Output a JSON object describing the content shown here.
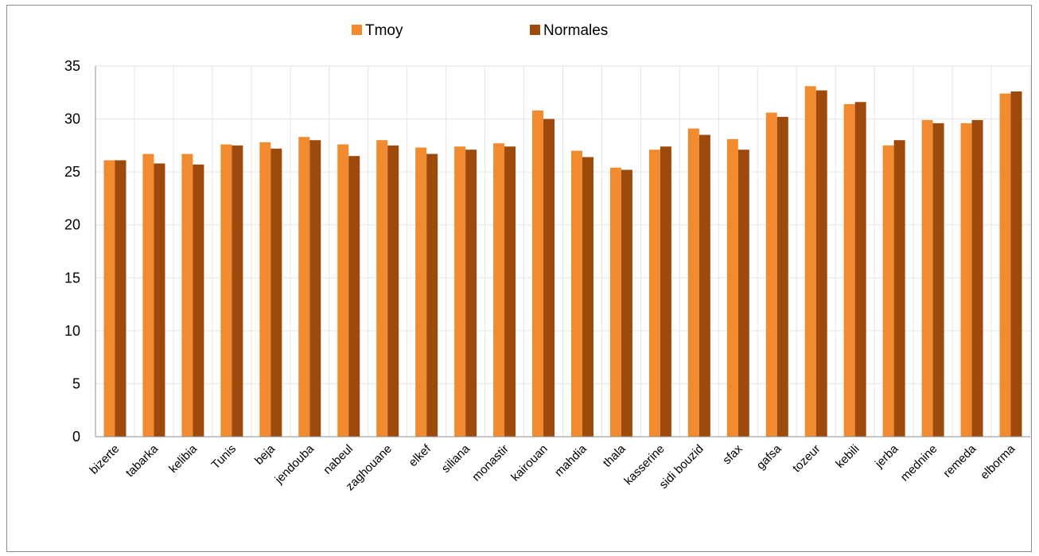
{
  "chart_data": {
    "type": "bar",
    "title": "",
    "xlabel": "",
    "ylabel": "",
    "ylim": [
      0,
      35
    ],
    "yticks": [
      0,
      5,
      10,
      15,
      20,
      25,
      30,
      35
    ],
    "grid": true,
    "legend_position": "top",
    "categories": [
      "bizerte",
      "tabarka",
      "kelibia",
      "Tunis",
      "beja",
      "jendouba",
      "nabeul",
      "zaghouane",
      "elkef",
      "siliana",
      "monastir",
      "kairouan",
      "mahdia",
      "thala",
      "kasserine",
      "sidi bouzid",
      "sfax",
      "gafsa",
      "tozeur",
      "kebili",
      "jerba",
      "mednine",
      "remeda",
      "elborma"
    ],
    "series": [
      {
        "name": "Tmoy",
        "color": "#f28b30",
        "values": [
          26.1,
          26.7,
          26.7,
          27.6,
          27.8,
          28.3,
          27.6,
          28.0,
          27.3,
          27.4,
          27.7,
          30.8,
          27.0,
          25.4,
          27.1,
          29.1,
          28.1,
          30.6,
          33.1,
          31.4,
          27.5,
          29.9,
          29.6,
          32.4
        ]
      },
      {
        "name": "Normales",
        "color": "#9e4a0c",
        "values": [
          26.1,
          25.8,
          25.7,
          27.5,
          27.2,
          28.0,
          26.5,
          27.5,
          26.7,
          27.1,
          27.4,
          30.0,
          26.4,
          25.2,
          27.4,
          28.5,
          27.1,
          30.2,
          32.7,
          31.6,
          28.0,
          29.6,
          29.9,
          32.6
        ]
      }
    ]
  }
}
